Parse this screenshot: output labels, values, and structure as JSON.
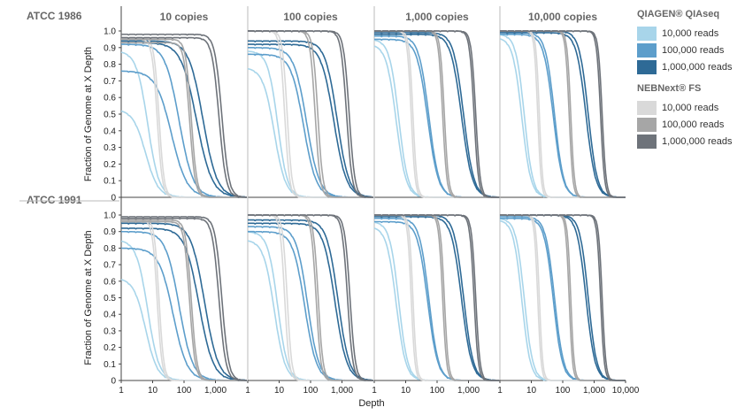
{
  "colors": {
    "qiagen_10k": "#a8d5ea",
    "qiagen_100k": "#5d9ecb",
    "qiagen_1m": "#2e6a96",
    "neb_10k": "#d9d9d9",
    "neb_100k": "#a6a6a6",
    "neb_1m": "#6e737a"
  },
  "legend": {
    "qiagen_title": "QIAGEN® QIAseq",
    "neb_title": "NEBNext® FS",
    "qiagen_items": [
      {
        "label": "10,000 reads",
        "color": "#a8d5ea"
      },
      {
        "label": "100,000 reads",
        "color": "#5d9ecb"
      },
      {
        "label": "1,000,000 reads",
        "color": "#2e6a96"
      }
    ],
    "neb_items": [
      {
        "label": "10,000 reads",
        "color": "#d9d9d9"
      },
      {
        "label": "100,000 reads",
        "color": "#a6a6a6"
      },
      {
        "label": "1,000,000 reads",
        "color": "#6e737a"
      }
    ]
  },
  "chart_data": {
    "type": "line",
    "xlabel": "Depth",
    "ylabel": "Fraction of Genome  at X Depth",
    "x_scale": "log",
    "xlim": [
      1,
      10000
    ],
    "ylim": [
      0,
      1.0
    ],
    "y_ticks": [
      "0",
      "0.1",
      "0.2",
      "0.3",
      "0.4",
      "0.5",
      "0.6",
      "0.7",
      "0.8",
      "0.9",
      "1.0"
    ],
    "x_tick_labels": [
      [
        "1",
        "10",
        "100",
        "1,000"
      ],
      [
        "1",
        "10",
        "100",
        "1,000"
      ],
      [
        "1",
        "10",
        "100",
        "1,000"
      ],
      [
        "1",
        "10",
        "100",
        "1,000",
        "10,000"
      ]
    ],
    "columns": [
      "10 copies",
      "100 copies",
      "1,000 copies",
      "10,000 copies"
    ],
    "rows": [
      "ATCC 1986",
      "ATCC 1991"
    ],
    "grid": false,
    "legend_position": "right",
    "panels": [
      [
        {
          "series": [
            {
              "key": "qiagen_10k",
              "start": 0.53,
              "mid": 6,
              "width": 0.45
            },
            {
              "key": "qiagen_10k",
              "start": 0.88,
              "mid": 7,
              "width": 0.4
            },
            {
              "key": "qiagen_100k",
              "start": 0.76,
              "mid": 40,
              "width": 0.55
            },
            {
              "key": "qiagen_100k",
              "start": 0.92,
              "mid": 70,
              "width": 0.5
            },
            {
              "key": "qiagen_1m",
              "start": 0.93,
              "mid": 250,
              "width": 0.55
            },
            {
              "key": "qiagen_1m",
              "start": 0.94,
              "mid": 400,
              "width": 0.5
            },
            {
              "key": "neb_10k",
              "start": 0.95,
              "mid": 14,
              "width": 0.18
            },
            {
              "key": "neb_10k",
              "start": 0.96,
              "mid": 16,
              "width": 0.18
            },
            {
              "key": "neb_100k",
              "start": 0.93,
              "mid": 150,
              "width": 0.2
            },
            {
              "key": "neb_100k",
              "start": 0.95,
              "mid": 170,
              "width": 0.2
            },
            {
              "key": "neb_1m",
              "start": 0.96,
              "mid": 1300,
              "width": 0.25
            },
            {
              "key": "neb_1m",
              "start": 0.98,
              "mid": 1600,
              "width": 0.25
            }
          ]
        },
        {
          "series": [
            {
              "key": "qiagen_10k",
              "start": 0.78,
              "mid": 7,
              "width": 0.4
            },
            {
              "key": "qiagen_10k",
              "start": 0.88,
              "mid": 9,
              "width": 0.35
            },
            {
              "key": "qiagen_100k",
              "start": 0.86,
              "mid": 60,
              "width": 0.45
            },
            {
              "key": "qiagen_100k",
              "start": 0.9,
              "mid": 75,
              "width": 0.45
            },
            {
              "key": "qiagen_1m",
              "start": 0.92,
              "mid": 550,
              "width": 0.45
            },
            {
              "key": "qiagen_1m",
              "start": 0.94,
              "mid": 700,
              "width": 0.42
            },
            {
              "key": "neb_10k",
              "start": 1.0,
              "mid": 15,
              "width": 0.17
            },
            {
              "key": "neb_10k",
              "start": 1.0,
              "mid": 18,
              "width": 0.17
            },
            {
              "key": "neb_100k",
              "start": 1.0,
              "mid": 140,
              "width": 0.18
            },
            {
              "key": "neb_100k",
              "start": 1.0,
              "mid": 170,
              "width": 0.18
            },
            {
              "key": "neb_1m",
              "start": 1.0,
              "mid": 1400,
              "width": 0.2
            },
            {
              "key": "neb_1m",
              "start": 1.0,
              "mid": 1700,
              "width": 0.2
            }
          ]
        },
        {
          "series": [
            {
              "key": "qiagen_10k",
              "start": 0.92,
              "mid": 5,
              "width": 0.35
            },
            {
              "key": "qiagen_10k",
              "start": 0.95,
              "mid": 6,
              "width": 0.33
            },
            {
              "key": "qiagen_100k",
              "start": 0.95,
              "mid": 50,
              "width": 0.38
            },
            {
              "key": "qiagen_100k",
              "start": 0.97,
              "mid": 55,
              "width": 0.36
            },
            {
              "key": "qiagen_1m",
              "start": 0.98,
              "mid": 600,
              "width": 0.38
            },
            {
              "key": "qiagen_1m",
              "start": 0.99,
              "mid": 700,
              "width": 0.36
            },
            {
              "key": "neb_10k",
              "start": 1.0,
              "mid": 15,
              "width": 0.14
            },
            {
              "key": "neb_10k",
              "start": 1.0,
              "mid": 17,
              "width": 0.14
            },
            {
              "key": "neb_100k",
              "start": 1.0,
              "mid": 150,
              "width": 0.15
            },
            {
              "key": "neb_100k",
              "start": 1.0,
              "mid": 170,
              "width": 0.15
            },
            {
              "key": "neb_1m",
              "start": 1.0,
              "mid": 1500,
              "width": 0.16
            },
            {
              "key": "neb_1m",
              "start": 1.0,
              "mid": 1700,
              "width": 0.16
            }
          ]
        },
        {
          "series": [
            {
              "key": "qiagen_10k",
              "start": 0.96,
              "mid": 5,
              "width": 0.32
            },
            {
              "key": "qiagen_10k",
              "start": 0.98,
              "mid": 6,
              "width": 0.3
            },
            {
              "key": "qiagen_100k",
              "start": 0.98,
              "mid": 50,
              "width": 0.34
            },
            {
              "key": "qiagen_100k",
              "start": 0.99,
              "mid": 55,
              "width": 0.32
            },
            {
              "key": "qiagen_1m",
              "start": 0.99,
              "mid": 550,
              "width": 0.34
            },
            {
              "key": "qiagen_1m",
              "start": 1.0,
              "mid": 650,
              "width": 0.32
            },
            {
              "key": "neb_10k",
              "start": 1.0,
              "mid": 16,
              "width": 0.12
            },
            {
              "key": "neb_10k",
              "start": 1.0,
              "mid": 18,
              "width": 0.12
            },
            {
              "key": "neb_100k",
              "start": 1.0,
              "mid": 160,
              "width": 0.13
            },
            {
              "key": "neb_100k",
              "start": 1.0,
              "mid": 180,
              "width": 0.13
            },
            {
              "key": "neb_1m",
              "start": 1.0,
              "mid": 1600,
              "width": 0.14
            },
            {
              "key": "neb_1m",
              "start": 1.0,
              "mid": 1800,
              "width": 0.14
            }
          ]
        }
      ],
      [
        {
          "series": [
            {
              "key": "qiagen_10k",
              "start": 0.62,
              "mid": 6,
              "width": 0.42
            },
            {
              "key": "qiagen_10k",
              "start": 0.85,
              "mid": 7,
              "width": 0.4
            },
            {
              "key": "qiagen_100k",
              "start": 0.8,
              "mid": 45,
              "width": 0.5
            },
            {
              "key": "qiagen_100k",
              "start": 0.9,
              "mid": 70,
              "width": 0.48
            },
            {
              "key": "qiagen_1m",
              "start": 0.92,
              "mid": 300,
              "width": 0.5
            },
            {
              "key": "qiagen_1m",
              "start": 0.95,
              "mid": 450,
              "width": 0.48
            },
            {
              "key": "neb_10k",
              "start": 0.97,
              "mid": 14,
              "width": 0.17
            },
            {
              "key": "neb_10k",
              "start": 0.98,
              "mid": 16,
              "width": 0.17
            },
            {
              "key": "neb_100k",
              "start": 0.96,
              "mid": 150,
              "width": 0.2
            },
            {
              "key": "neb_100k",
              "start": 0.97,
              "mid": 170,
              "width": 0.2
            },
            {
              "key": "neb_1m",
              "start": 0.98,
              "mid": 1300,
              "width": 0.24
            },
            {
              "key": "neb_1m",
              "start": 0.99,
              "mid": 1600,
              "width": 0.24
            }
          ]
        },
        {
          "series": [
            {
              "key": "qiagen_10k",
              "start": 0.85,
              "mid": 7,
              "width": 0.38
            },
            {
              "key": "qiagen_10k",
              "start": 0.9,
              "mid": 9,
              "width": 0.35
            },
            {
              "key": "qiagen_100k",
              "start": 0.9,
              "mid": 65,
              "width": 0.42
            },
            {
              "key": "qiagen_100k",
              "start": 0.93,
              "mid": 80,
              "width": 0.4
            },
            {
              "key": "qiagen_1m",
              "start": 0.95,
              "mid": 600,
              "width": 0.42
            },
            {
              "key": "qiagen_1m",
              "start": 0.97,
              "mid": 750,
              "width": 0.4
            },
            {
              "key": "neb_10k",
              "start": 1.0,
              "mid": 15,
              "width": 0.16
            },
            {
              "key": "neb_10k",
              "start": 1.0,
              "mid": 18,
              "width": 0.16
            },
            {
              "key": "neb_100k",
              "start": 1.0,
              "mid": 150,
              "width": 0.17
            },
            {
              "key": "neb_100k",
              "start": 1.0,
              "mid": 175,
              "width": 0.17
            },
            {
              "key": "neb_1m",
              "start": 1.0,
              "mid": 1500,
              "width": 0.19
            },
            {
              "key": "neb_1m",
              "start": 1.0,
              "mid": 1800,
              "width": 0.19
            }
          ]
        },
        {
          "series": [
            {
              "key": "qiagen_10k",
              "start": 0.93,
              "mid": 5,
              "width": 0.34
            },
            {
              "key": "qiagen_10k",
              "start": 0.96,
              "mid": 6,
              "width": 0.32
            },
            {
              "key": "qiagen_100k",
              "start": 0.96,
              "mid": 50,
              "width": 0.36
            },
            {
              "key": "qiagen_100k",
              "start": 0.98,
              "mid": 55,
              "width": 0.34
            },
            {
              "key": "qiagen_1m",
              "start": 0.99,
              "mid": 600,
              "width": 0.36
            },
            {
              "key": "qiagen_1m",
              "start": 1.0,
              "mid": 700,
              "width": 0.34
            },
            {
              "key": "neb_10k",
              "start": 1.0,
              "mid": 15,
              "width": 0.13
            },
            {
              "key": "neb_10k",
              "start": 1.0,
              "mid": 17,
              "width": 0.13
            },
            {
              "key": "neb_100k",
              "start": 1.0,
              "mid": 150,
              "width": 0.14
            },
            {
              "key": "neb_100k",
              "start": 1.0,
              "mid": 170,
              "width": 0.14
            },
            {
              "key": "neb_1m",
              "start": 1.0,
              "mid": 1500,
              "width": 0.15
            },
            {
              "key": "neb_1m",
              "start": 1.0,
              "mid": 1700,
              "width": 0.15
            }
          ]
        },
        {
          "series": [
            {
              "key": "qiagen_10k",
              "start": 0.97,
              "mid": 5,
              "width": 0.3
            },
            {
              "key": "qiagen_10k",
              "start": 0.98,
              "mid": 6,
              "width": 0.3
            },
            {
              "key": "qiagen_100k",
              "start": 0.98,
              "mid": 50,
              "width": 0.32
            },
            {
              "key": "qiagen_100k",
              "start": 0.99,
              "mid": 55,
              "width": 0.32
            },
            {
              "key": "qiagen_1m",
              "start": 1.0,
              "mid": 550,
              "width": 0.32
            },
            {
              "key": "qiagen_1m",
              "start": 1.0,
              "mid": 650,
              "width": 0.3
            },
            {
              "key": "neb_10k",
              "start": 1.0,
              "mid": 16,
              "width": 0.12
            },
            {
              "key": "neb_10k",
              "start": 1.0,
              "mid": 18,
              "width": 0.12
            },
            {
              "key": "neb_100k",
              "start": 1.0,
              "mid": 160,
              "width": 0.12
            },
            {
              "key": "neb_100k",
              "start": 1.0,
              "mid": 180,
              "width": 0.12
            },
            {
              "key": "neb_1m",
              "start": 1.0,
              "mid": 1600,
              "width": 0.13
            },
            {
              "key": "neb_1m",
              "start": 1.0,
              "mid": 1800,
              "width": 0.13
            }
          ]
        }
      ]
    ]
  }
}
